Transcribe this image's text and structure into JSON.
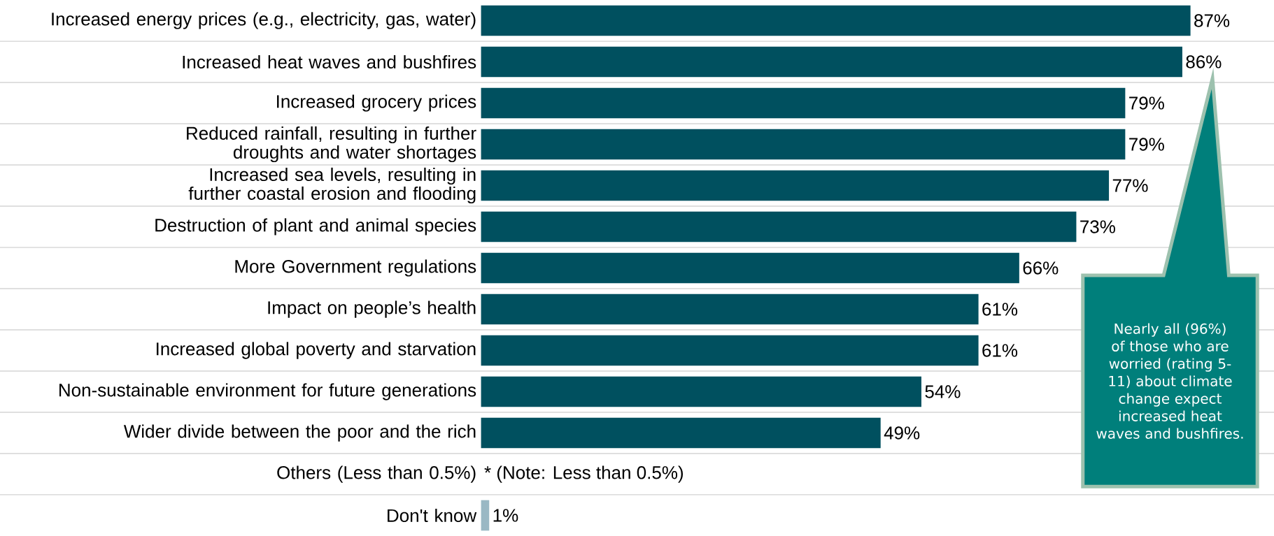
{
  "chart_data": {
    "type": "bar",
    "orientation": "horizontal",
    "grid": "y",
    "categories": [
      "Increased energy prices (e.g., electricity, gas, water)",
      "Increased heat waves and bushfires",
      "Increased grocery prices",
      "Reduced rainfall, resulting in further droughts and water shortages",
      "Increased sea levels, resulting in further coastal erosion and flooding",
      "Destruction of plant and animal species",
      "More Government regulations",
      "Impact on people’s health",
      "Increased global poverty and starvation",
      "Non-sustainable environment for future generations",
      "Wider divide between the poor and the rich",
      "Others (Less than 0.5%)",
      "Don't know"
    ],
    "values": [
      87,
      86,
      79,
      79,
      77,
      73,
      66,
      61,
      61,
      54,
      49,
      null,
      1
    ],
    "value_labels": [
      "87%",
      "86%",
      "79%",
      "79%",
      "77%",
      "73%",
      "66%",
      "61%",
      "61%",
      "54%",
      "49%",
      "* (Note: Less than 0.5%)",
      "1%"
    ],
    "colors": [
      "#00505f",
      "#00505f",
      "#00505f",
      "#00505f",
      "#00505f",
      "#00505f",
      "#00505f",
      "#00505f",
      "#00505f",
      "#00505f",
      "#00505f",
      "#00505f",
      "#9ab8c4"
    ],
    "annotations": [
      "Nearly all (96%) of those who are worried (rating 5-11) about climate change expect increased heat waves and bushfires."
    ]
  }
}
